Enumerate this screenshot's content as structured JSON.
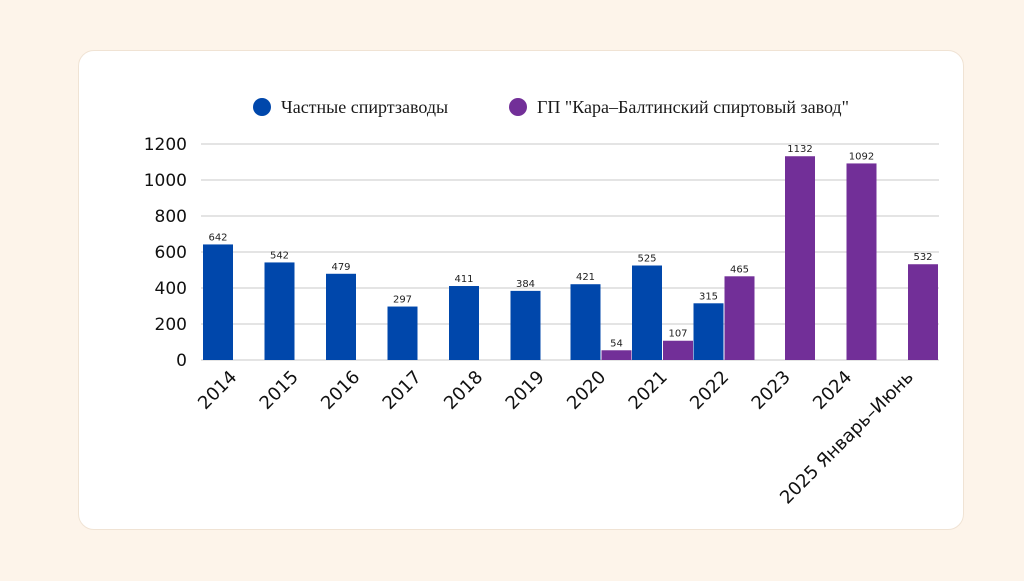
{
  "colors": {
    "background": "#fdf4ea",
    "card": "#ffffff",
    "private": "#0047ab",
    "state": "#722f98",
    "grid": "#c8c8c8"
  },
  "chart_data": {
    "type": "bar",
    "title": "",
    "xlabel": "",
    "ylabel": "",
    "ylim": [
      0,
      1200
    ],
    "yticks": [
      0,
      200,
      400,
      600,
      800,
      1000,
      1200
    ],
    "grid": true,
    "legend_position": "top",
    "categories": [
      "2014",
      "2015",
      "2016",
      "2017",
      "2018",
      "2019",
      "2020",
      "2021",
      "2022",
      "2023",
      "2024",
      "2025 Январь–Июнь"
    ],
    "series": [
      {
        "name": "Частные спиртзаводы",
        "color": "#0047ab",
        "values": [
          642,
          542,
          479,
          297,
          411,
          384,
          421,
          525,
          315,
          null,
          null,
          null
        ]
      },
      {
        "name": "ГП \"Кара–Балтинский спиртовый завод\"",
        "color": "#722f98",
        "values": [
          null,
          null,
          null,
          null,
          null,
          null,
          54,
          107,
          465,
          1132,
          1092,
          532
        ]
      }
    ]
  }
}
